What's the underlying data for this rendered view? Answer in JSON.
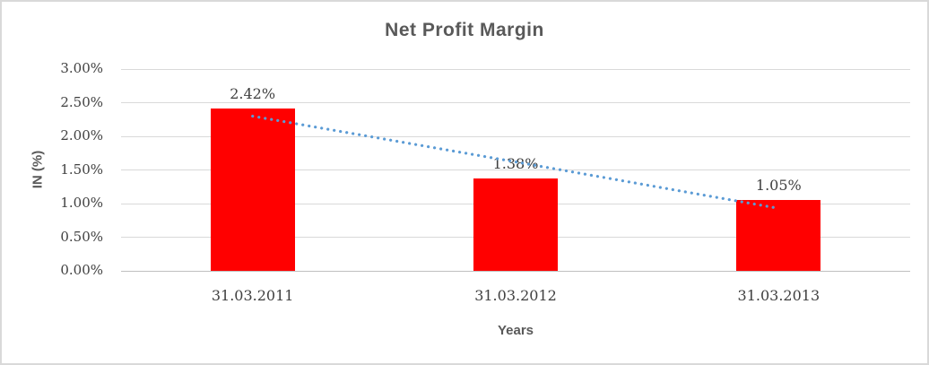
{
  "chart_data": {
    "type": "bar",
    "title": "Net Profit Margin",
    "xlabel": "Years",
    "ylabel": "IN (%)",
    "categories": [
      "31.03.2011",
      "31.03.2012",
      "31.03.2013"
    ],
    "values": [
      2.42,
      1.38,
      1.05
    ],
    "data_labels": [
      "2.42%",
      "1.38%",
      "1.05%"
    ],
    "ylim": [
      0,
      3
    ],
    "yticks": [
      0,
      0.5,
      1,
      1.5,
      2,
      2.5,
      3
    ],
    "ytick_labels": [
      "0.00%",
      "0.50%",
      "1.00%",
      "1.50%",
      "2.00%",
      "2.50%",
      "3.00%"
    ],
    "grid": "horizontal",
    "legend": "none",
    "bar_color": "#ff0000",
    "trendline": {
      "style": "dotted",
      "color": "#5b9bd5",
      "values": [
        2.3,
        1.62,
        0.93
      ]
    },
    "colors": {
      "title": "#595959",
      "axis_title": "#595959",
      "tick_label": "#404040",
      "data_label": "#404040",
      "gridline": "#d9d9d9",
      "axis_line": "#c0c0c0",
      "background": "#ffffff",
      "border": "#d9d9d9"
    }
  }
}
